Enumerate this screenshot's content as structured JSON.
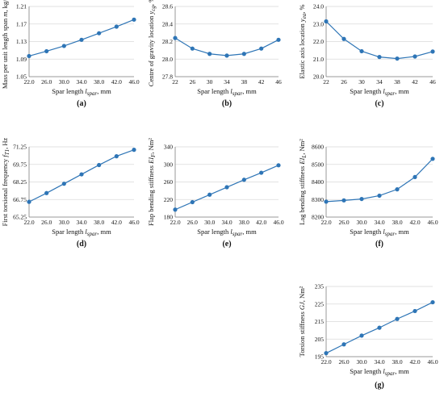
{
  "chart_data": [
    {
      "type": "line",
      "panel_label": "(a)",
      "x": [
        22,
        26,
        30,
        34,
        38,
        42,
        46
      ],
      "x_tick_labels": [
        "22.0",
        "26.0",
        "30.0",
        "34.0",
        "38.0",
        "42.0",
        "46.0"
      ],
      "y_tick_labels": [
        "1.05",
        "1.09",
        "1.13",
        "1.17",
        "1.21"
      ],
      "y_ticks": [
        1.05,
        1.09,
        1.13,
        1.17,
        1.21
      ],
      "ylim": [
        1.05,
        1.21
      ],
      "series": [
        {
          "values": [
            1.097,
            1.108,
            1.12,
            1.134,
            1.149,
            1.164,
            1.18
          ]
        }
      ],
      "xlabel": {
        "main": "Spar length",
        "symbol": "l",
        "sub": "spar",
        "unit": ", mm"
      },
      "ylabel": {
        "main": "Mass per unit length span",
        "symbol": "m",
        "sub": "",
        "unit": ", kg/m"
      },
      "color": "#2E75B6"
    },
    {
      "type": "line",
      "panel_label": "(b)",
      "x": [
        22,
        26,
        30,
        34,
        38,
        42,
        46
      ],
      "x_tick_labels": [
        "22",
        "26",
        "30",
        "34",
        "38",
        "42",
        "46"
      ],
      "y_tick_labels": [
        "27.8",
        "28.0",
        "28.2",
        "28.4",
        "28.6"
      ],
      "y_ticks": [
        27.8,
        28.0,
        28.2,
        28.4,
        28.6
      ],
      "ylim": [
        27.8,
        28.6
      ],
      "series": [
        {
          "values": [
            28.24,
            28.12,
            28.06,
            28.04,
            28.06,
            28.12,
            28.22
          ]
        }
      ],
      "xlabel": {
        "main": "Spar length",
        "symbol": "l",
        "sub": "spar",
        "unit": ", mm"
      },
      "ylabel": {
        "main": "Centre of gravity location",
        "symbol": "y",
        "sub": "cg",
        "unit": ", %"
      },
      "color": "#2E75B6"
    },
    {
      "type": "line",
      "panel_label": "(c)",
      "x": [
        22,
        26,
        30,
        34,
        38,
        42,
        46
      ],
      "x_tick_labels": [
        "22",
        "26",
        "30",
        "34",
        "38",
        "42",
        "46"
      ],
      "y_tick_labels": [
        "20.0",
        "21.0",
        "22.0",
        "23.0",
        "24.0"
      ],
      "y_ticks": [
        20,
        21,
        22,
        23,
        24
      ],
      "ylim": [
        20,
        24
      ],
      "series": [
        {
          "values": [
            23.15,
            22.15,
            21.45,
            21.12,
            21.03,
            21.15,
            21.43
          ]
        }
      ],
      "xlabel": {
        "main": "Spar length",
        "symbol": "l",
        "sub": "spar",
        "unit": ", mm"
      },
      "ylabel": {
        "main": "Elastic axis location",
        "symbol": "y",
        "sub": "ea",
        "unit": ", %"
      },
      "color": "#2E75B6"
    },
    {
      "type": "line",
      "panel_label": "(d)",
      "x": [
        22,
        26,
        30,
        34,
        38,
        42,
        46
      ],
      "x_tick_labels": [
        "22.0",
        "26.0",
        "30.0",
        "34.0",
        "38.0",
        "42.0",
        "46.0"
      ],
      "y_tick_labels": [
        "65.25",
        "66.75",
        "68.25",
        "69.75",
        "71.25"
      ],
      "y_ticks": [
        65.25,
        66.75,
        68.25,
        69.75,
        71.25
      ],
      "ylim": [
        65.25,
        71.25
      ],
      "series": [
        {
          "values": [
            66.55,
            67.3,
            68.1,
            68.9,
            69.7,
            70.45,
            71.0
          ]
        }
      ],
      "xlabel": {
        "main": "Spar length",
        "symbol": "l",
        "sub": "spar",
        "unit": ", mm"
      },
      "ylabel": {
        "main": "First torsional frequency",
        "symbol": "f",
        "sub": "T1",
        "unit": ", Hz"
      },
      "color": "#2E75B6"
    },
    {
      "type": "line",
      "panel_label": "(e)",
      "x": [
        22,
        26,
        30,
        34,
        38,
        42,
        46
      ],
      "x_tick_labels": [
        "22.0",
        "26.0",
        "30.0",
        "34.0",
        "38.0",
        "42.0",
        "46.0"
      ],
      "y_tick_labels": [
        "180",
        "220",
        "260",
        "300",
        "340"
      ],
      "y_ticks": [
        180,
        220,
        260,
        300,
        340
      ],
      "ylim": [
        180,
        340
      ],
      "series": [
        {
          "values": [
            197,
            214,
            231,
            248,
            265,
            281,
            298
          ]
        }
      ],
      "xlabel": {
        "main": "Spar length",
        "symbol": "l",
        "sub": "spar",
        "unit": ", mm"
      },
      "ylabel": {
        "main": "Flap bending stiffness",
        "symbol": "EI",
        "sub": "F",
        "unit": ", Nm²"
      },
      "color": "#2E75B6"
    },
    {
      "type": "line",
      "panel_label": "(f)",
      "x": [
        22,
        26,
        30,
        34,
        38,
        42,
        46
      ],
      "x_tick_labels": [
        "22.0",
        "26.0",
        "30.0",
        "34.0",
        "38.0",
        "42.0",
        "46.0"
      ],
      "y_tick_labels": [
        "8200",
        "8300",
        "8400",
        "8500",
        "8600"
      ],
      "y_ticks": [
        8200,
        8300,
        8400,
        8500,
        8600
      ],
      "ylim": [
        8200,
        8600
      ],
      "series": [
        {
          "values": [
            8288,
            8295,
            8303,
            8322,
            8358,
            8428,
            8532
          ]
        }
      ],
      "xlabel": {
        "main": "Spar length",
        "symbol": "l",
        "sub": "spar",
        "unit": ", mm"
      },
      "ylabel": {
        "main": "Lag bending stiffness",
        "symbol": "EI",
        "sub": "L",
        "unit": ", Nm²"
      },
      "color": "#2E75B6"
    },
    {
      "type": "line",
      "panel_label": "(g)",
      "x": [
        22,
        26,
        30,
        34,
        38,
        42,
        46
      ],
      "x_tick_labels": [
        "22.0",
        "26.0",
        "30.0",
        "34.0",
        "38.0",
        "42.0",
        "46.0"
      ],
      "y_tick_labels": [
        "195",
        "205",
        "215",
        "225",
        "235"
      ],
      "y_ticks": [
        195,
        205,
        215,
        225,
        235
      ],
      "ylim": [
        195,
        235
      ],
      "series": [
        {
          "values": [
            197,
            202,
            207,
            211.5,
            216.5,
            221,
            226
          ]
        }
      ],
      "xlabel": {
        "main": "Spar length",
        "symbol": "l",
        "sub": "spar",
        "unit": ", mm"
      },
      "ylabel": {
        "main": "Torsion stiffness",
        "symbol": "GJ",
        "sub": "",
        "unit": ", Nm²"
      },
      "color": "#2E75B6"
    }
  ]
}
